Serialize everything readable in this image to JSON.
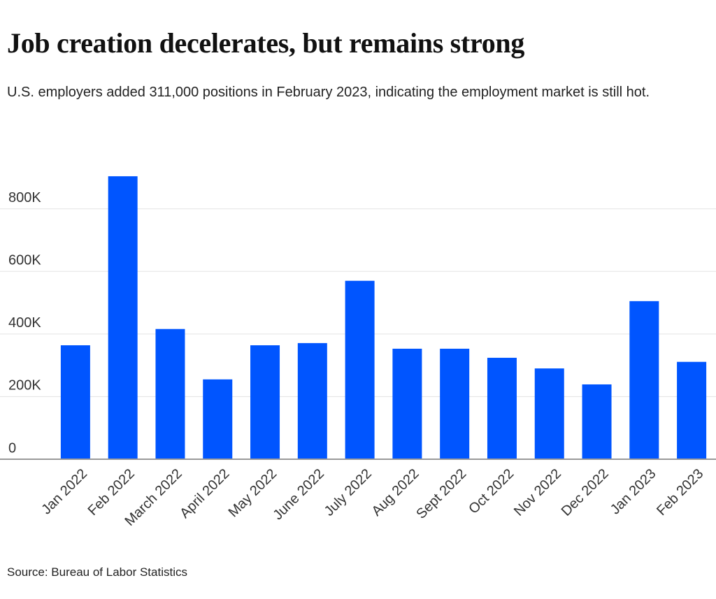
{
  "chart_data": {
    "type": "bar",
    "title": "Job creation decelerates, but remains strong",
    "subtitle": "U.S. employers added 311,000 positions in February 2023, indicating the employment market is still hot.",
    "source": "Source: Bureau of Labor Statistics",
    "categories": [
      "Jan 2022",
      "Feb 2022",
      "March 2022",
      "April 2022",
      "May 2022",
      "June 2022",
      "July 2022",
      "Aug 2022",
      "Sept 2022",
      "Oct 2022",
      "Nov 2022",
      "Dec 2022",
      "Jan 2023",
      "Feb 2023"
    ],
    "values": [
      364000,
      904000,
      416000,
      255000,
      364000,
      371000,
      570000,
      353000,
      353000,
      324000,
      290000,
      239000,
      505000,
      311000
    ],
    "color": "#0055ff",
    "ylim": [
      0,
      920000
    ],
    "yticks": [
      0,
      {
        "value": 200000,
        "label": "200K"
      },
      {
        "value": 400000,
        "label": "400K"
      },
      {
        "value": 600000,
        "label": "600K"
      },
      {
        "value": 800000,
        "label": "800K"
      }
    ],
    "grid": true
  }
}
